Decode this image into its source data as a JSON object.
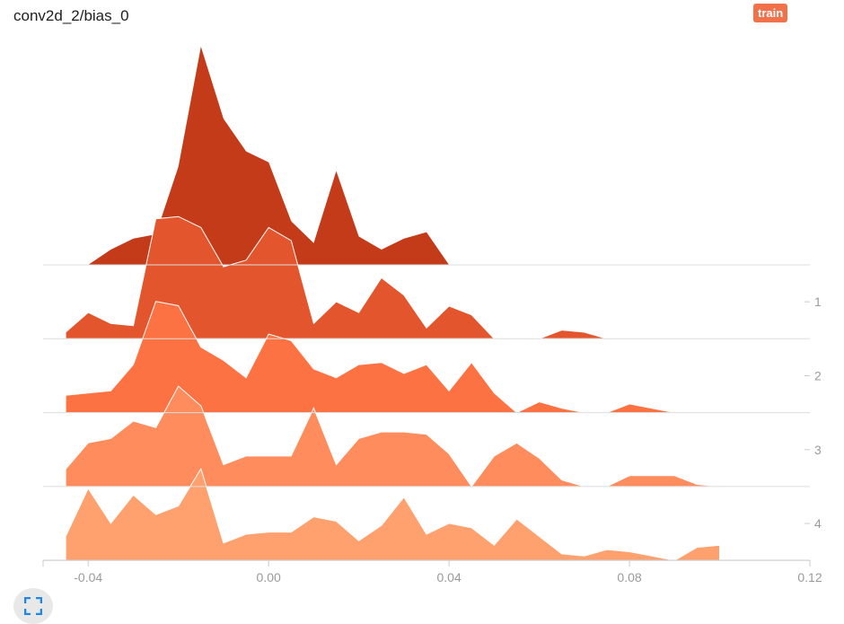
{
  "header": {
    "title": "conv2d_2/bias_0",
    "run_badge": "train",
    "run_color": "#f0714a"
  },
  "controls": {
    "expand_icon": "fullscreen-icon"
  },
  "chart_data": {
    "type": "area",
    "chart_kind": "ridgeline histogram",
    "x_range": [
      -0.05,
      0.12
    ],
    "x_ticks": [
      -0.04,
      0.0,
      0.04,
      0.08,
      0.12
    ],
    "x_tick_labels": [
      "-0.04",
      "0.00",
      "0.04",
      "0.08",
      "0.12"
    ],
    "y_ticks": [
      1,
      2,
      3,
      4
    ],
    "y_tick_labels": [
      "1",
      "2",
      "3",
      "4"
    ],
    "grid": false,
    "series": [
      {
        "step": 0,
        "color": "#c43b1a",
        "points": [
          [
            -0.0445,
            0
          ],
          [
            -0.04,
            0
          ],
          [
            -0.035,
            0.07
          ],
          [
            -0.03,
            0.12
          ],
          [
            -0.025,
            0.14
          ],
          [
            -0.02,
            0.45
          ],
          [
            -0.015,
            1.0
          ],
          [
            -0.01,
            0.67
          ],
          [
            -0.005,
            0.52
          ],
          [
            0.0,
            0.47
          ],
          [
            0.005,
            0.2
          ],
          [
            0.01,
            0.1
          ],
          [
            0.015,
            0.43
          ],
          [
            0.02,
            0.13
          ],
          [
            0.025,
            0.07
          ],
          [
            0.03,
            0.12
          ],
          [
            0.035,
            0.15
          ],
          [
            0.04,
            0
          ]
        ]
      },
      {
        "step": 1,
        "color": "#e3552c",
        "points": [
          [
            -0.045,
            0.03
          ],
          [
            -0.04,
            0.12
          ],
          [
            -0.035,
            0.07
          ],
          [
            -0.03,
            0.06
          ],
          [
            -0.025,
            0.55
          ],
          [
            -0.02,
            0.56
          ],
          [
            -0.015,
            0.51
          ],
          [
            -0.01,
            0.33
          ],
          [
            -0.005,
            0.36
          ],
          [
            0.0,
            0.51
          ],
          [
            0.005,
            0.45
          ],
          [
            0.01,
            0.07
          ],
          [
            0.015,
            0.17
          ],
          [
            0.02,
            0.12
          ],
          [
            0.025,
            0.28
          ],
          [
            0.03,
            0.2
          ],
          [
            0.035,
            0.05
          ],
          [
            0.04,
            0.15
          ],
          [
            0.045,
            0.11
          ],
          [
            0.05,
            0.0
          ],
          [
            0.055,
            0
          ],
          [
            0.06,
            0
          ],
          [
            0.065,
            0.04
          ],
          [
            0.07,
            0.03
          ],
          [
            0.075,
            0
          ]
        ]
      },
      {
        "step": 2,
        "color": "#fd7242",
        "points": [
          [
            -0.045,
            0.08
          ],
          [
            -0.04,
            0.09
          ],
          [
            -0.035,
            0.1
          ],
          [
            -0.03,
            0.22
          ],
          [
            -0.025,
            0.51
          ],
          [
            -0.02,
            0.49
          ],
          [
            -0.015,
            0.3
          ],
          [
            -0.01,
            0.24
          ],
          [
            -0.005,
            0.16
          ],
          [
            0.0,
            0.36
          ],
          [
            0.005,
            0.33
          ],
          [
            0.01,
            0.2
          ],
          [
            0.015,
            0.16
          ],
          [
            0.02,
            0.22
          ],
          [
            0.025,
            0.23
          ],
          [
            0.03,
            0.18
          ],
          [
            0.035,
            0.22
          ],
          [
            0.04,
            0.1
          ],
          [
            0.045,
            0.23
          ],
          [
            0.05,
            0.09
          ],
          [
            0.055,
            0.0
          ],
          [
            0.06,
            0.05
          ],
          [
            0.065,
            0.02
          ],
          [
            0.07,
            0
          ],
          [
            0.075,
            0.0
          ],
          [
            0.08,
            0.04
          ],
          [
            0.085,
            0.02
          ],
          [
            0.09,
            0
          ]
        ]
      },
      {
        "step": 3,
        "color": "#fe8c5c",
        "points": [
          [
            -0.045,
            0.08
          ],
          [
            -0.04,
            0.2
          ],
          [
            -0.035,
            0.22
          ],
          [
            -0.03,
            0.3
          ],
          [
            -0.025,
            0.27
          ],
          [
            -0.02,
            0.46
          ],
          [
            -0.015,
            0.37
          ],
          [
            -0.01,
            0.1
          ],
          [
            -0.005,
            0.14
          ],
          [
            0.0,
            0.14
          ],
          [
            0.005,
            0.14
          ],
          [
            0.01,
            0.36
          ],
          [
            0.015,
            0.1
          ],
          [
            0.02,
            0.22
          ],
          [
            0.025,
            0.25
          ],
          [
            0.03,
            0.25
          ],
          [
            0.035,
            0.24
          ],
          [
            0.04,
            0.15
          ],
          [
            0.045,
            0.0
          ],
          [
            0.05,
            0.14
          ],
          [
            0.055,
            0.2
          ],
          [
            0.06,
            0.13
          ],
          [
            0.065,
            0.03
          ],
          [
            0.07,
            0
          ],
          [
            0.075,
            0.0
          ],
          [
            0.08,
            0.05
          ],
          [
            0.085,
            0.05
          ],
          [
            0.09,
            0.05
          ],
          [
            0.095,
            0.01
          ],
          [
            0.1,
            0
          ]
        ]
      },
      {
        "step": 4,
        "color": "#ffa16f",
        "points": [
          [
            -0.045,
            0.11
          ],
          [
            -0.04,
            0.33
          ],
          [
            -0.035,
            0.17
          ],
          [
            -0.03,
            0.3
          ],
          [
            -0.025,
            0.21
          ],
          [
            -0.02,
            0.25
          ],
          [
            -0.015,
            0.42
          ],
          [
            -0.01,
            0.08
          ],
          [
            -0.005,
            0.12
          ],
          [
            0.0,
            0.13
          ],
          [
            0.005,
            0.13
          ],
          [
            0.01,
            0.2
          ],
          [
            0.015,
            0.18
          ],
          [
            0.02,
            0.09
          ],
          [
            0.025,
            0.16
          ],
          [
            0.03,
            0.29
          ],
          [
            0.035,
            0.12
          ],
          [
            0.04,
            0.17
          ],
          [
            0.045,
            0.15
          ],
          [
            0.05,
            0.07
          ],
          [
            0.055,
            0.19
          ],
          [
            0.06,
            0.11
          ],
          [
            0.065,
            0.03
          ],
          [
            0.07,
            0.02
          ],
          [
            0.075,
            0.05
          ],
          [
            0.08,
            0.04
          ],
          [
            0.085,
            0.02
          ],
          [
            0.09,
            0.0
          ],
          [
            0.095,
            0.06
          ],
          [
            0.1,
            0.07
          ]
        ]
      }
    ]
  }
}
